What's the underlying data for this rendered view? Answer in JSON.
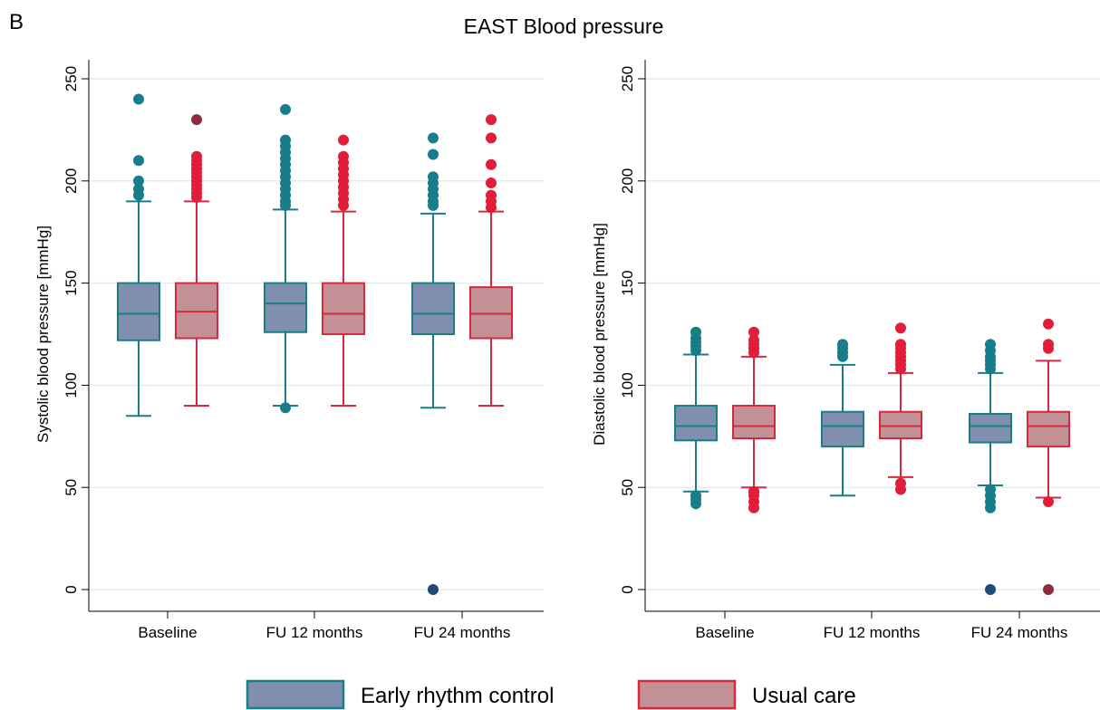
{
  "figure": {
    "panel_letter": "B",
    "title": "EAST Blood pressure"
  },
  "legend": {
    "items": [
      {
        "label": "Early rhythm control",
        "fill": "#7f8fad",
        "stroke": "#1a7d8a"
      },
      {
        "label": "Usual care",
        "fill": "#c39096",
        "stroke": "#d6293e"
      }
    ]
  },
  "colors": {
    "early_fill": "#7f8fad",
    "early_line": "#1a7d8a",
    "early_outlier": "#177d8b",
    "usual_fill": "#c39096",
    "usual_line": "#d6293e",
    "usual_outlier": "#e11d3a",
    "overlap_outlier_dark_blue": "#1f4a7a",
    "overlap_outlier_dark_red": "#8e2d3d",
    "gridline": "#e3ecf0"
  },
  "chart_data": [
    {
      "type": "box",
      "ylabel": "Systolic blood pressure [mmHg]",
      "ylim": [
        0,
        250
      ],
      "yticks": [
        0,
        50,
        100,
        150,
        200,
        250
      ],
      "grid": true,
      "categories": [
        "Baseline",
        "FU 12 months",
        "FU 24 months"
      ],
      "series": [
        {
          "name": "Early rhythm control",
          "boxes": [
            {
              "category": "Baseline",
              "whisker_low": 85,
              "q1": 122,
              "median": 135,
              "q3": 150,
              "whisker_high": 190,
              "outliers": [
                193,
                196,
                200,
                210,
                240
              ]
            },
            {
              "category": "FU 12 months",
              "whisker_low": 90,
              "q1": 126,
              "median": 140,
              "q3": 150,
              "whisker_high": 186,
              "outliers": [
                89,
                188,
                190,
                193,
                196,
                199,
                202,
                205,
                208,
                211,
                214,
                217,
                220,
                235
              ]
            },
            {
              "category": "FU 24 months",
              "whisker_low": 89,
              "q1": 125,
              "median": 135,
              "q3": 150,
              "whisker_high": 184,
              "outliers": [
                0,
                188,
                190,
                193,
                196,
                199,
                202,
                213,
                221
              ]
            }
          ]
        },
        {
          "name": "Usual care",
          "boxes": [
            {
              "category": "Baseline",
              "whisker_low": 90,
              "q1": 123,
              "median": 136,
              "q3": 150,
              "whisker_high": 190,
              "outliers": [
                192,
                194,
                196,
                198,
                200,
                202,
                204,
                206,
                208,
                210,
                212,
                230
              ]
            },
            {
              "category": "FU 12 months",
              "whisker_low": 90,
              "q1": 125,
              "median": 135,
              "q3": 150,
              "whisker_high": 185,
              "outliers": [
                188,
                191,
                194,
                197,
                200,
                203,
                206,
                209,
                212,
                220
              ]
            },
            {
              "category": "FU 24 months",
              "whisker_low": 90,
              "q1": 123,
              "median": 135,
              "q3": 148,
              "whisker_high": 185,
              "outliers": [
                187,
                190,
                193,
                199,
                208,
                221,
                230
              ]
            }
          ]
        }
      ]
    },
    {
      "type": "box",
      "ylabel": "Diastolic blood pressure [mmHg]",
      "ylim": [
        0,
        250
      ],
      "yticks": [
        0,
        50,
        100,
        150,
        200,
        250
      ],
      "grid": true,
      "categories": [
        "Baseline",
        "FU 12 months",
        "FU 24 months"
      ],
      "series": [
        {
          "name": "Early rhythm control",
          "boxes": [
            {
              "category": "Baseline",
              "whisker_low": 48,
              "q1": 73,
              "median": 80,
              "q3": 90,
              "whisker_high": 115,
              "outliers": [
                42,
                44,
                46,
                117,
                119,
                121,
                123,
                126
              ]
            },
            {
              "category": "FU 12 months",
              "whisker_low": 46,
              "q1": 70,
              "median": 80,
              "q3": 87,
              "whisker_high": 110,
              "outliers": [
                114,
                116,
                118,
                120
              ]
            },
            {
              "category": "FU 24 months",
              "whisker_low": 51,
              "q1": 72,
              "median": 80,
              "q3": 86,
              "whisker_high": 106,
              "outliers": [
                0,
                40,
                43,
                46,
                49,
                108,
                110,
                112,
                114,
                117,
                120
              ]
            }
          ]
        },
        {
          "name": "Usual care",
          "boxes": [
            {
              "category": "Baseline",
              "whisker_low": 50,
              "q1": 74,
              "median": 80,
              "q3": 90,
              "whisker_high": 114,
              "outliers": [
                40,
                43,
                46,
                48,
                116,
                118,
                120,
                122,
                126
              ]
            },
            {
              "category": "FU 12 months",
              "whisker_low": 55,
              "q1": 74,
              "median": 80,
              "q3": 87,
              "whisker_high": 106,
              "outliers": [
                49,
                52,
                108,
                110,
                112,
                114,
                116,
                118,
                120,
                128
              ]
            },
            {
              "category": "FU 24 months",
              "whisker_low": 45,
              "q1": 70,
              "median": 80,
              "q3": 87,
              "whisker_high": 112,
              "outliers": [
                0,
                43,
                118,
                120,
                130
              ]
            }
          ]
        }
      ]
    }
  ]
}
